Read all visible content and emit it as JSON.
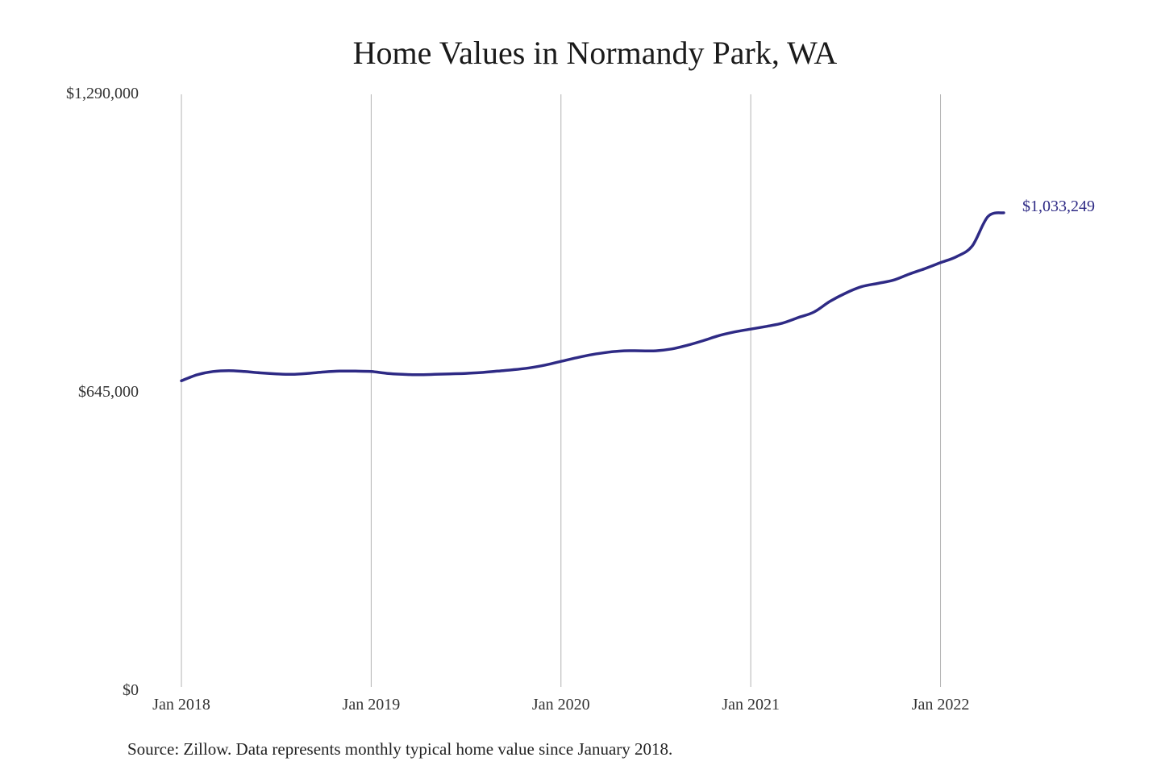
{
  "title": "Home Values in Normandy Park, WA",
  "source": "Source: Zillow. Data represents monthly typical home value since January 2018.",
  "colors": {
    "line": "#2e2a85",
    "grid": "#b3b3b3",
    "text": "#333333"
  },
  "chart_data": {
    "type": "line",
    "title": "Home Values in Normandy Park, WA",
    "xlabel": "",
    "ylabel": "",
    "ylim": [
      0,
      1290000
    ],
    "y_ticks": [
      {
        "value": 0,
        "label": "$0"
      },
      {
        "value": 645000,
        "label": "$645,000"
      },
      {
        "value": 1290000,
        "label": "$1,290,000"
      }
    ],
    "x_range": [
      "2018-01",
      "2022-05"
    ],
    "x_ticks": [
      {
        "date": "2018-01",
        "label": "Jan 2018"
      },
      {
        "date": "2019-01",
        "label": "Jan 2019"
      },
      {
        "date": "2020-01",
        "label": "Jan 2020"
      },
      {
        "date": "2021-01",
        "label": "Jan 2021"
      },
      {
        "date": "2022-01",
        "label": "Jan 2022"
      }
    ],
    "grid": {
      "vertical": true,
      "horizontal": false
    },
    "end_label": "$1,033,249",
    "series": [
      {
        "x": [
          "2018-01",
          "2018-02",
          "2018-03",
          "2018-04",
          "2018-05",
          "2018-06",
          "2018-07",
          "2018-08",
          "2018-09",
          "2018-10",
          "2018-11",
          "2018-12",
          "2019-01",
          "2019-02",
          "2019-03",
          "2019-04",
          "2019-05",
          "2019-06",
          "2019-07",
          "2019-08",
          "2019-09",
          "2019-10",
          "2019-11",
          "2019-12",
          "2020-01",
          "2020-02",
          "2020-03",
          "2020-04",
          "2020-05",
          "2020-06",
          "2020-07",
          "2020-08",
          "2020-09",
          "2020-10",
          "2020-11",
          "2020-12",
          "2021-01",
          "2021-02",
          "2021-03",
          "2021-04",
          "2021-05",
          "2021-06",
          "2021-07",
          "2021-08",
          "2021-09",
          "2021-10",
          "2021-11",
          "2021-12",
          "2022-01",
          "2022-02",
          "2022-03",
          "2022-04",
          "2022-05"
        ],
        "values": [
          669000,
          682000,
          689000,
          691000,
          689000,
          686000,
          684000,
          683000,
          685000,
          688000,
          690000,
          690000,
          689000,
          685000,
          683000,
          682000,
          683000,
          684000,
          685000,
          687000,
          690000,
          693000,
          697000,
          703000,
          711000,
          719000,
          726000,
          731000,
          734000,
          734000,
          734000,
          738000,
          746000,
          756000,
          767000,
          775000,
          781000,
          787000,
          794000,
          806000,
          818000,
          841000,
          859000,
          873000,
          880000,
          887000,
          900000,
          912000,
          925000,
          938000,
          961000,
          1025000,
          1033249
        ]
      }
    ]
  }
}
